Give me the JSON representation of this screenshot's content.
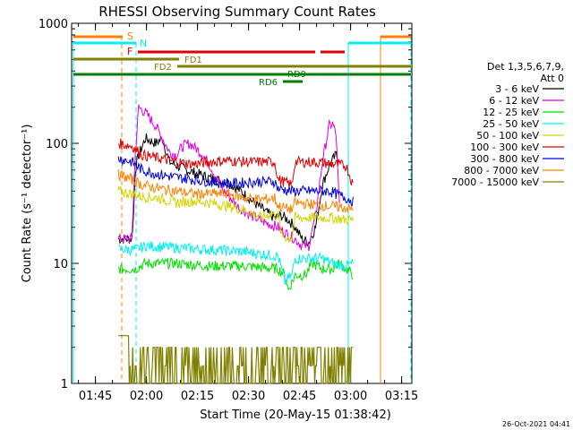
{
  "chart_data": {
    "type": "line",
    "title": "RHESSI Observing Summary Count Rates",
    "xlabel": "Start Time (20-May-15 01:38:42)",
    "ylabel": "Count Rate (s⁻¹ detector⁻¹)",
    "y_scale": "log",
    "ylim": [
      1,
      1000
    ],
    "xlim_minutes": [
      -0.7,
      99.3
    ],
    "x_ticks": [
      {
        "m": 6.3,
        "label": "01:45"
      },
      {
        "m": 21.3,
        "label": "02:00"
      },
      {
        "m": 36.3,
        "label": "02:15"
      },
      {
        "m": 51.3,
        "label": "02:30"
      },
      {
        "m": 66.3,
        "label": "02:45"
      },
      {
        "m": 81.3,
        "label": "03:00"
      },
      {
        "m": 96.3,
        "label": "03:15"
      }
    ],
    "y_ticks": [
      {
        "v": 1,
        "label": "1"
      },
      {
        "v": 10,
        "label": "10"
      },
      {
        "v": 100,
        "label": "100"
      },
      {
        "v": 1000,
        "label": "1000"
      }
    ],
    "legend_title": [
      "Det 1,3,5,6,7,9,",
      "Att 0"
    ],
    "legend_position": "right",
    "series": [
      {
        "name": "3 - 6 keV",
        "color": "#000000",
        "points": [
          [
            13,
            16
          ],
          [
            17,
            16
          ],
          [
            17.5,
            26
          ],
          [
            18,
            60
          ],
          [
            19,
            80
          ],
          [
            21,
            110
          ],
          [
            24,
            100
          ],
          [
            26,
            110
          ],
          [
            28,
            70
          ],
          [
            33,
            60
          ],
          [
            37,
            55
          ],
          [
            41,
            50
          ],
          [
            45,
            48
          ],
          [
            49,
            40
          ],
          [
            53,
            32
          ],
          [
            57,
            26
          ],
          [
            59,
            24
          ],
          [
            61,
            25
          ],
          [
            63,
            23
          ],
          [
            65,
            20
          ],
          [
            67,
            16
          ],
          [
            69,
            15
          ],
          [
            71,
            20
          ],
          [
            73,
            45
          ],
          [
            75,
            65
          ],
          [
            77,
            80
          ],
          [
            78,
            75
          ]
        ]
      },
      {
        "name": "6 - 12 keV",
        "color": "#e000e0",
        "points": [
          [
            13,
            16
          ],
          [
            17,
            16
          ],
          [
            18,
            80
          ],
          [
            19,
            200
          ],
          [
            21,
            180
          ],
          [
            24,
            140
          ],
          [
            26,
            110
          ],
          [
            28,
            85
          ],
          [
            30,
            80
          ],
          [
            32,
            95
          ],
          [
            34,
            100
          ],
          [
            36,
            90
          ],
          [
            38,
            80
          ],
          [
            40,
            65
          ],
          [
            42,
            50
          ],
          [
            44,
            40
          ],
          [
            46,
            35
          ],
          [
            48,
            30
          ],
          [
            52,
            25
          ],
          [
            56,
            22
          ],
          [
            60,
            20
          ],
          [
            62,
            18
          ],
          [
            65,
            16
          ],
          [
            67,
            14
          ],
          [
            69,
            14
          ],
          [
            71,
            25
          ],
          [
            73,
            70
          ],
          [
            75,
            140
          ],
          [
            76,
            145
          ],
          [
            77,
            120
          ],
          [
            78,
            30
          ]
        ]
      },
      {
        "name": "12 - 25 keV",
        "color": "#00e000",
        "points": [
          [
            13,
            9
          ],
          [
            18,
            9
          ],
          [
            21,
            10
          ],
          [
            30,
            10
          ],
          [
            40,
            9.5
          ],
          [
            50,
            9.5
          ],
          [
            60,
            9
          ],
          [
            62,
            8
          ],
          [
            63,
            6
          ],
          [
            65,
            8
          ],
          [
            68,
            8
          ],
          [
            70,
            10
          ],
          [
            73,
            9
          ],
          [
            76,
            9
          ],
          [
            78,
            10
          ],
          [
            80,
            9
          ],
          [
            82,
            8
          ]
        ]
      },
      {
        "name": "25 - 50 keV",
        "color": "#00f0f0",
        "points": [
          [
            13,
            13
          ],
          [
            18,
            13
          ],
          [
            21,
            14
          ],
          [
            30,
            13.5
          ],
          [
            40,
            13
          ],
          [
            50,
            12.5
          ],
          [
            60,
            11.5
          ],
          [
            62,
            7
          ],
          [
            64,
            8
          ],
          [
            65,
            11
          ],
          [
            68,
            11
          ],
          [
            73,
            11
          ],
          [
            76,
            10
          ],
          [
            80,
            9.5
          ],
          [
            82,
            10
          ]
        ]
      },
      {
        "name": "50 - 100 keV",
        "color": "#d4d400",
        "points": [
          [
            13,
            40
          ],
          [
            17,
            38
          ],
          [
            20,
            36
          ],
          [
            25,
            35
          ],
          [
            30,
            32
          ],
          [
            35,
            33
          ],
          [
            40,
            32
          ],
          [
            45,
            30
          ],
          [
            50,
            28
          ],
          [
            55,
            24
          ],
          [
            58,
            26
          ],
          [
            60,
            25
          ],
          [
            61,
            17
          ],
          [
            64,
            16
          ],
          [
            65,
            24
          ],
          [
            68,
            24
          ],
          [
            72,
            24
          ],
          [
            76,
            24
          ],
          [
            80,
            23
          ],
          [
            82,
            23
          ]
        ]
      },
      {
        "name": "100 - 300 keV",
        "color": "#e00000",
        "points": [
          [
            13,
            100
          ],
          [
            17,
            95
          ],
          [
            20,
            80
          ],
          [
            25,
            75
          ],
          [
            30,
            70
          ],
          [
            35,
            67
          ],
          [
            40,
            70
          ],
          [
            45,
            72
          ],
          [
            50,
            70
          ],
          [
            55,
            70
          ],
          [
            59,
            70
          ],
          [
            60,
            50
          ],
          [
            64,
            45
          ],
          [
            65,
            70
          ],
          [
            70,
            70
          ],
          [
            75,
            68
          ],
          [
            80,
            65
          ],
          [
            82,
            45
          ]
        ]
      },
      {
        "name": "300 - 800 keV",
        "color": "#0000e0",
        "points": [
          [
            13,
            75
          ],
          [
            17,
            70
          ],
          [
            20,
            60
          ],
          [
            25,
            55
          ],
          [
            30,
            52
          ],
          [
            35,
            50
          ],
          [
            40,
            48
          ],
          [
            45,
            46
          ],
          [
            50,
            47
          ],
          [
            55,
            48
          ],
          [
            59,
            48
          ],
          [
            60,
            42
          ],
          [
            64,
            40
          ],
          [
            65,
            40
          ],
          [
            70,
            40
          ],
          [
            75,
            40
          ],
          [
            80,
            35
          ],
          [
            82,
            33
          ]
        ]
      },
      {
        "name": "800 - 7000 keV",
        "color": "#ff8000",
        "points": [
          [
            13,
            55
          ],
          [
            17,
            50
          ],
          [
            20,
            45
          ],
          [
            25,
            42
          ],
          [
            30,
            40
          ],
          [
            35,
            38
          ],
          [
            40,
            38
          ],
          [
            45,
            38
          ],
          [
            50,
            35
          ],
          [
            55,
            34
          ],
          [
            59,
            35
          ],
          [
            60,
            30
          ],
          [
            64,
            28
          ],
          [
            65,
            32
          ],
          [
            70,
            31
          ],
          [
            75,
            30
          ],
          [
            80,
            29
          ],
          [
            82,
            28
          ]
        ]
      },
      {
        "name": "7000 - 15000 keV",
        "color": "#808000",
        "points": [
          [
            13,
            2.5
          ],
          [
            16,
            2.5
          ],
          [
            17,
            1.5
          ],
          [
            30,
            1.6
          ],
          [
            50,
            1.5
          ],
          [
            70,
            1.5
          ],
          [
            82,
            1.5
          ]
        ]
      }
    ],
    "markers": [
      {
        "label": "S",
        "m": 16.2,
        "color": "#ff8000"
      },
      {
        "label": "N",
        "m": 20.5,
        "color": "#00f0f0"
      }
    ],
    "flag_bars": [
      {
        "label": "F",
        "color": "#e00000"
      },
      {
        "label": "FD1",
        "color": "#808000"
      },
      {
        "label": "FD2",
        "color": "#808000"
      },
      {
        "label": "RD6",
        "color": "#008000"
      },
      {
        "label": "RD9",
        "color": "#008000"
      }
    ],
    "footer_timestamp": "26-Oct-2021 04:41"
  }
}
